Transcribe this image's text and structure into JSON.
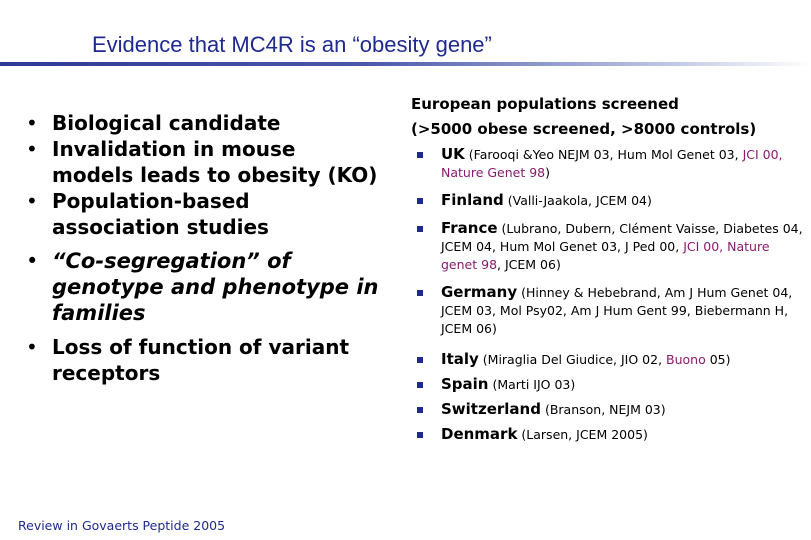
{
  "title": "Evidence that MC4R is an “obesity gene”",
  "left_bullets": [
    "Biological candidate",
    "Invalidation in mouse models leads to obesity (KO)",
    "Population-based association studies",
    "“Co-segregation” of genotype and phenotype in families",
    "Loss of function of variant receptors"
  ],
  "right_header_line1": "European populations screened",
  "right_header_line2": "(>5000 obese screened, >8000 controls)",
  "countries": [
    {
      "name": "UK",
      "pre": "(Farooqi &Yeo NEJM 03, Hum Mol Genet 03, ",
      "purple": "JCI 00, Nature Genet 98",
      "post": ")"
    },
    {
      "name": "Finland",
      "pre": "(Valli-Jaakola,  JCEM 04)",
      "purple": "",
      "post": ""
    },
    {
      "name": "France",
      "pre": "(Lubrano, Dubern, Clément Vaisse, Diabetes 04, JCEM 04, Hum Mol Genet 03, J Ped 00, ",
      "purple": "JCI 00, Nature genet 98",
      "post": ", JCEM 06)"
    },
    {
      "name": "Germany",
      "pre": "(Hinney & Hebebrand, Am J Hum Genet 04, JCEM 03, Mol Psy02, Am J Hum Gent 99, Biebermann H, JCEM 06)",
      "purple": "",
      "post": ""
    },
    {
      "name": "Italy",
      "pre": "(Miraglia Del Giudice, JIO 02, ",
      "purple": "Buono",
      "post": " 05)"
    },
    {
      "name": "Spain",
      "pre": "(Marti IJO 03)",
      "purple": "",
      "post": ""
    },
    {
      "name": "Switzerland",
      "pre": "(Branson, NEJM 03)",
      "purple": "",
      "post": ""
    },
    {
      "name": "Denmark",
      "pre": "(Larsen, JCEM 2005)",
      "purple": "",
      "post": ""
    }
  ],
  "footer": "Review in Govaerts Peptide 2005",
  "colors": {
    "title": "#1f2a8f",
    "accent_purple": "#8a1a6e",
    "bullet_square": "#1f2a8f"
  }
}
